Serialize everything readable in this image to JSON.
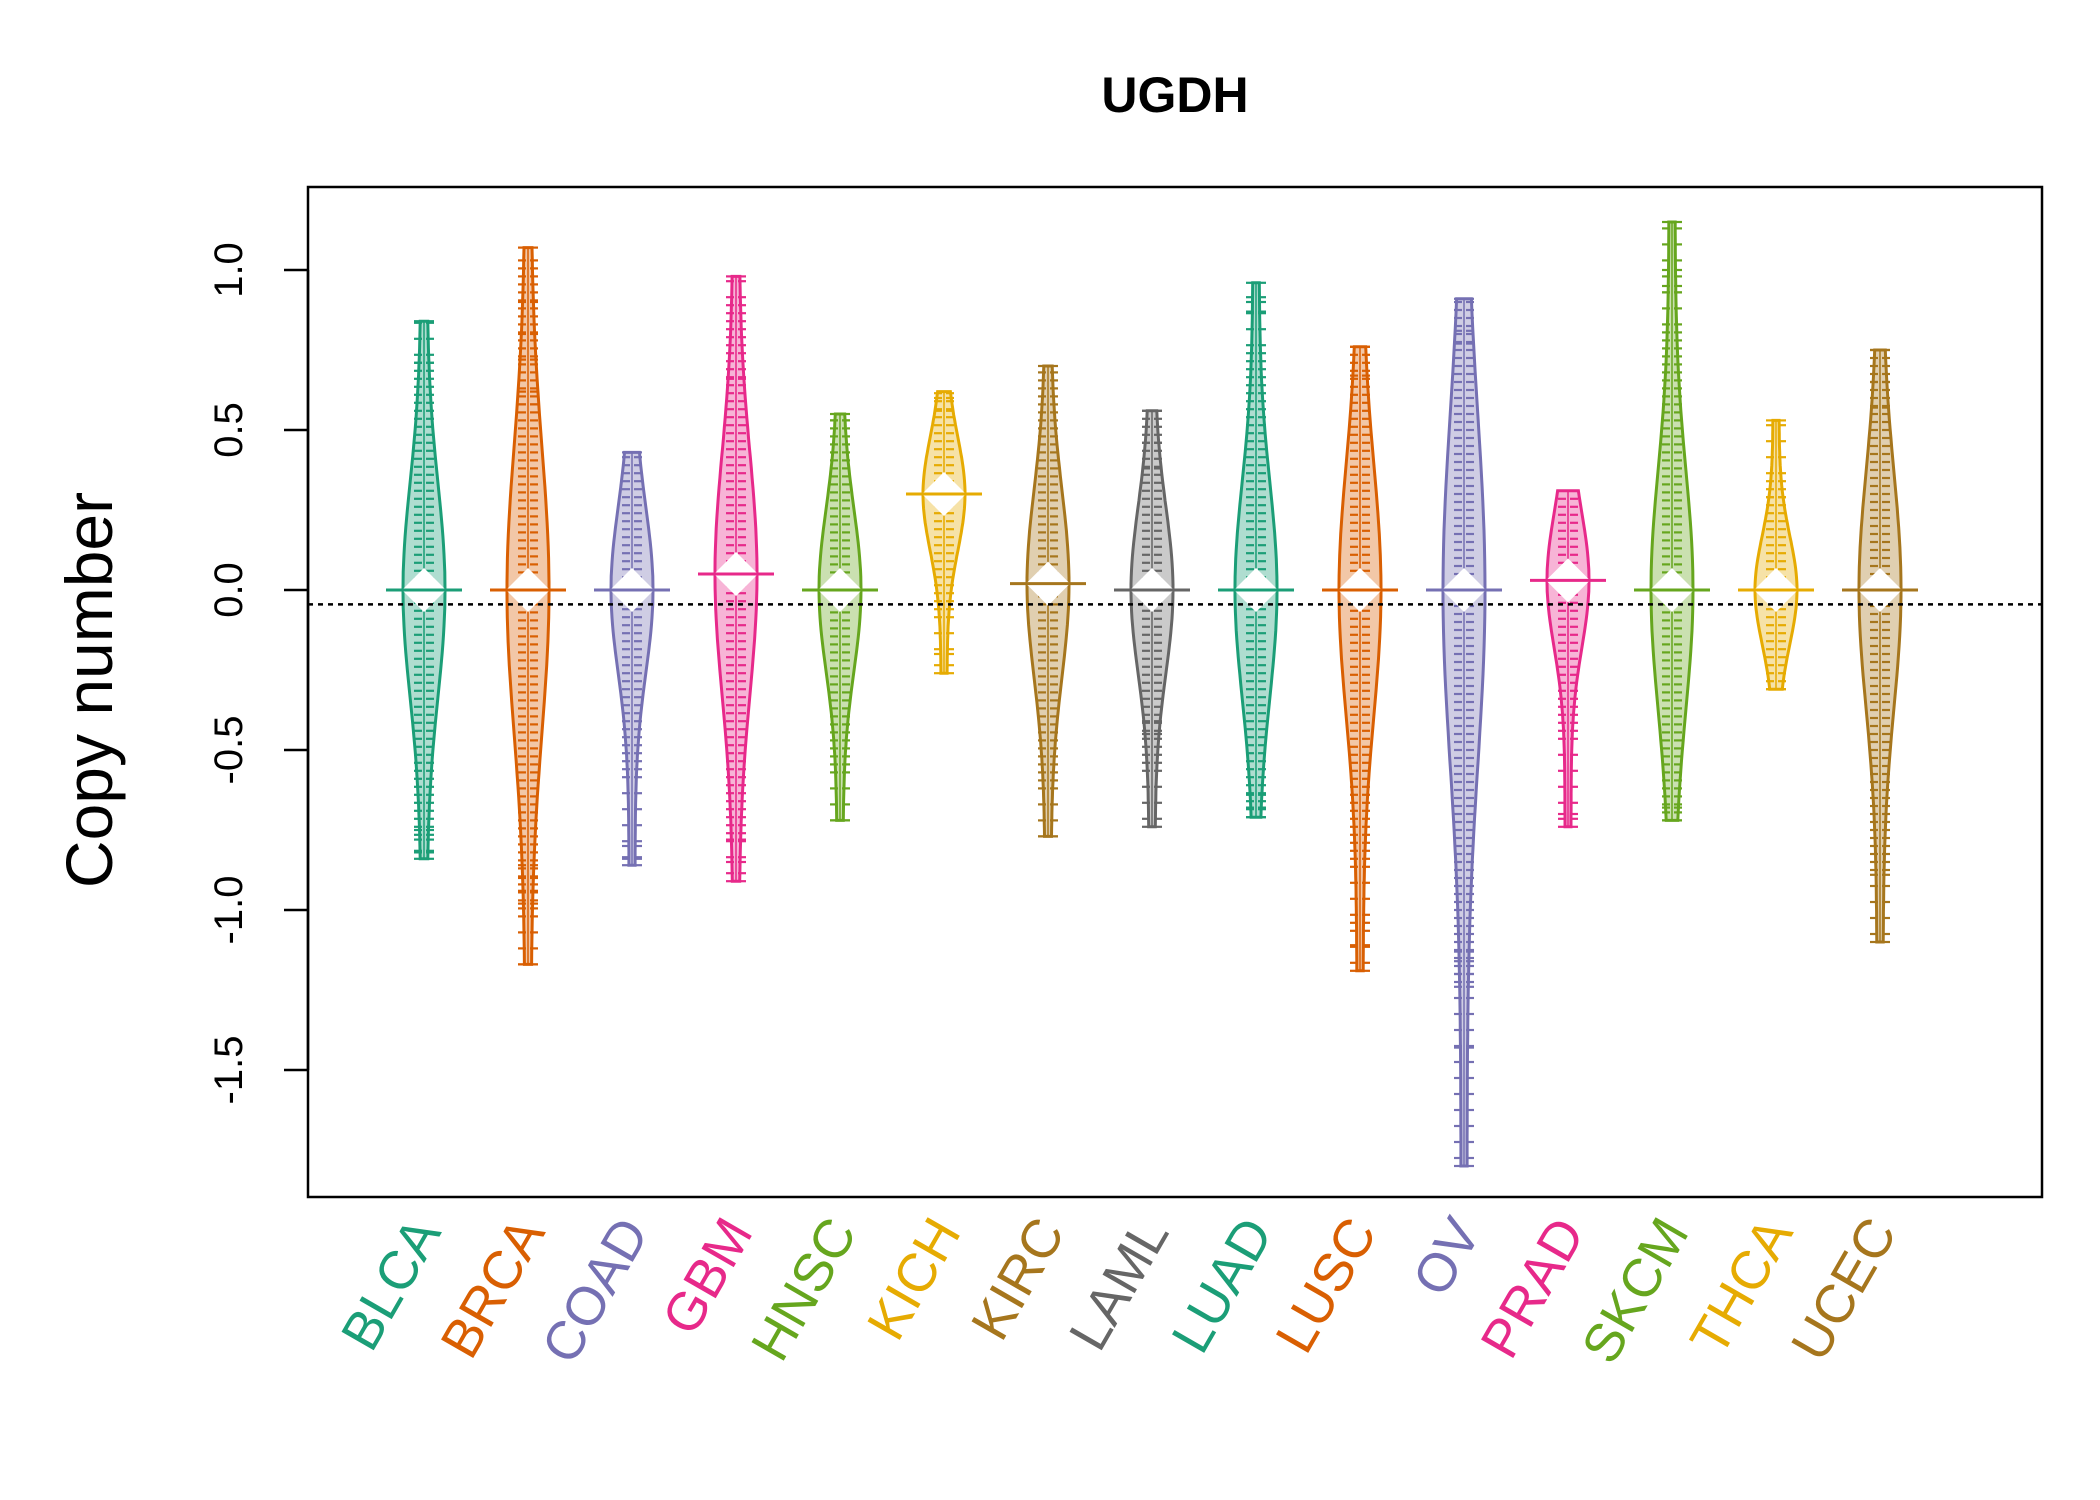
{
  "chart_data": {
    "type": "beanplot",
    "title": "UGDH",
    "xlabel": "",
    "ylabel": "Copy number",
    "ylim": [
      -1.9,
      1.25
    ],
    "yticks": [
      1.0,
      0.5,
      0.0,
      -0.5,
      -1.0,
      -1.5
    ],
    "ytick_labels": [
      "1.0",
      "0.5",
      "0.0",
      "-0.5",
      "-1.0",
      "-1.5"
    ],
    "reference_line": -0.045,
    "categories": [
      "BLCA",
      "BRCA",
      "COAD",
      "GBM",
      "HNSC",
      "KICH",
      "KIRC",
      "LAML",
      "LUAD",
      "LUSC",
      "OV",
      "PRAD",
      "SKCM",
      "THCA",
      "UCEC"
    ],
    "colors": [
      "#1b9e77",
      "#d95f02",
      "#7570b3",
      "#e7298a",
      "#66a61e",
      "#e6ab02",
      "#a6761d",
      "#666666",
      "#1b9e77",
      "#d95f02",
      "#7570b3",
      "#e7298a",
      "#66a61e",
      "#e6ab02",
      "#a6761d"
    ],
    "series": [
      {
        "name": "BLCA",
        "min": -0.84,
        "max": 0.84,
        "median": 0.0,
        "outliers": [
          0.84,
          0.71,
          -0.75,
          -0.78,
          -0.82,
          -0.84
        ]
      },
      {
        "name": "BRCA",
        "min": -1.17,
        "max": 1.07,
        "median": 0.0,
        "outliers": [
          1.07,
          0.9,
          0.8,
          0.72,
          0.62,
          0.58,
          -0.86,
          -0.9,
          -0.94,
          -0.98,
          -1.17
        ]
      },
      {
        "name": "COAD",
        "min": -0.86,
        "max": 0.43,
        "median": 0.0,
        "outliers": [
          0.43,
          -0.8,
          -0.84,
          -0.86
        ]
      },
      {
        "name": "GBM",
        "min": -0.91,
        "max": 0.98,
        "median": 0.05,
        "outliers": [
          0.98,
          0.66,
          -0.78,
          -0.85,
          -0.91
        ]
      },
      {
        "name": "HNSC",
        "min": -0.72,
        "max": 0.55,
        "median": 0.0,
        "outliers": [
          0.55,
          0.53,
          -0.72
        ]
      },
      {
        "name": "KICH",
        "min": -0.26,
        "max": 0.62,
        "median": 0.3,
        "outliers": [
          0.6,
          0.56,
          -0.2,
          -0.26
        ]
      },
      {
        "name": "KIRC",
        "min": -0.77,
        "max": 0.7,
        "median": 0.02,
        "outliers": [
          0.7,
          -0.77
        ]
      },
      {
        "name": "LAML",
        "min": -0.74,
        "max": 0.56,
        "median": 0.0,
        "outliers": [
          0.56,
          0.46,
          0.38,
          -0.41,
          -0.45,
          -0.74
        ]
      },
      {
        "name": "LUAD",
        "min": -0.71,
        "max": 0.96,
        "median": 0.0,
        "outliers": [
          0.96,
          0.9,
          0.87,
          -0.64,
          -0.68,
          -0.71
        ]
      },
      {
        "name": "LUSC",
        "min": -1.19,
        "max": 0.76,
        "median": 0.0,
        "outliers": [
          0.76,
          0.67,
          -1.04,
          -1.11,
          -1.19
        ]
      },
      {
        "name": "OV",
        "min": -1.8,
        "max": 0.91,
        "median": 0.0,
        "outliers": [
          0.91,
          0.81,
          0.77,
          -1.13,
          -1.16,
          -1.2,
          -1.24,
          -1.43,
          -1.8
        ]
      },
      {
        "name": "PRAD",
        "min": -0.74,
        "max": 0.31,
        "median": 0.03,
        "outliers": [
          -0.7,
          -0.74
        ]
      },
      {
        "name": "SKCM",
        "min": -0.72,
        "max": 1.15,
        "median": 0.0,
        "outliers": [
          1.15,
          1.0,
          0.95,
          0.93,
          -0.68,
          -0.72
        ]
      },
      {
        "name": "THCA",
        "min": -0.31,
        "max": 0.53,
        "median": 0.0,
        "outliers": [
          0.53,
          0.29,
          -0.31
        ]
      },
      {
        "name": "UCEC",
        "min": -1.1,
        "max": 0.75,
        "median": 0.0,
        "outliers": [
          0.75,
          0.65,
          0.57,
          -0.85,
          -0.89,
          -1.1
        ]
      }
    ]
  }
}
